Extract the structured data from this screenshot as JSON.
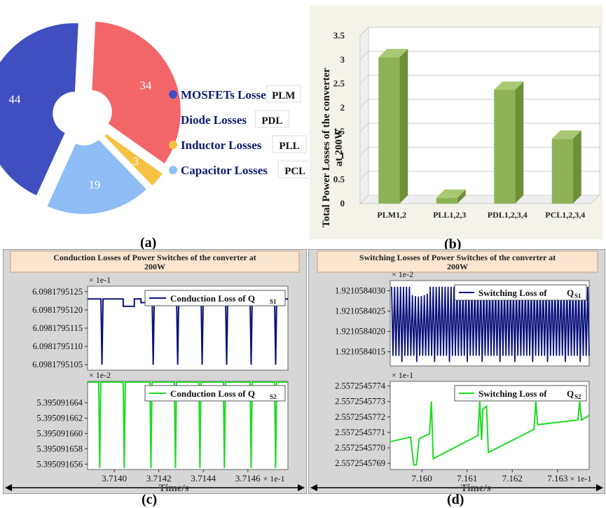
{
  "labels": {
    "a": "(a)",
    "b": "(b)",
    "c": "(c)",
    "d": "(d)"
  },
  "chart_data": [
    {
      "id": "a",
      "type": "pie",
      "donut": true,
      "slices": [
        {
          "label": "MOSFETs Losses",
          "tag": "PLM",
          "value": 44,
          "color": "#3f4fbf"
        },
        {
          "label": "Diode Losses",
          "tag": "PDL",
          "value": 34,
          "color": "#f2666a"
        },
        {
          "label": "Inductor Losses",
          "tag": "PLL",
          "value": 3,
          "color": "#f7c244"
        },
        {
          "label": "Capacitor Losses",
          "tag": "PCL",
          "value": 19,
          "color": "#8fbdf5"
        }
      ]
    },
    {
      "id": "b",
      "type": "bar",
      "style": "3d",
      "ylabel_lines": [
        "Total Power Losses of the converter",
        "at 200W"
      ],
      "categories": [
        "PLM1,2",
        "PLL1,2,3",
        "PDL1,2,3,4",
        "PCL1,2,3,4"
      ],
      "values": [
        3.05,
        0.12,
        2.37,
        1.35
      ],
      "ylim": [
        0,
        3.5
      ],
      "yticks": [
        "0",
        "0.5",
        "1",
        "1.5",
        "2",
        "2.5",
        "3",
        "3.5"
      ],
      "bar_color": "#8db356"
    },
    {
      "id": "c",
      "type": "line",
      "title_lines": [
        "Conduction Losses of Power Switches of the converter at",
        "200W"
      ],
      "xlabel": "Time/s",
      "xticks": [
        "3.7140",
        "3.7142",
        "3.7144",
        "3.7146"
      ],
      "xmultiplier": "× 1e-1",
      "xlim": [
        3.71388,
        3.71478
      ],
      "plots": [
        {
          "multiplier": "× 1e-1",
          "legend": "Conduction Loss of Q",
          "legend_sub": "S1",
          "color": "#0a127a",
          "yticks": [
            "6.0981795125",
            "6.0981795120",
            "6.0981795115",
            "6.0981795110",
            "6.0981795105"
          ],
          "ylim": [
            6.09817951035,
            6.09817951265
          ],
          "baseline": 6.0981795123,
          "dip_to": 6.0981795105,
          "dips_x": [
            3.71394,
            3.71417,
            3.71428,
            3.71439,
            3.7145,
            3.71461,
            3.71472
          ],
          "notches": [
            [
              3.71404,
              3.71409,
              6.0981795121
            ],
            [
              3.71412,
              3.71415,
              6.0981795122
            ]
          ]
        },
        {
          "multiplier": "× 1e-2",
          "legend": "Conduction Loss of Q",
          "legend_sub": "S2",
          "color": "#1edb22",
          "yticks": [
            "5.395091664",
            "5.395091662",
            "5.395091660",
            "5.395091658",
            "5.395091656"
          ],
          "ylim": [
            5.3950916553,
            5.3950916668
          ],
          "baseline": 5.3950916667,
          "dip_to": 5.3950916555,
          "dips_x": [
            3.71393,
            3.71404,
            3.71416,
            3.71427,
            3.71438,
            3.71449,
            3.71461,
            3.71472
          ]
        }
      ]
    },
    {
      "id": "d",
      "type": "line",
      "title_lines": [
        "Switching Losses of Power Switches of the converter at",
        "200W"
      ],
      "xlabel": "Time/s",
      "xticks": [
        "7.160",
        "7.161",
        "7.162",
        "7.163"
      ],
      "xmultiplier": "× 1e-1",
      "xlim": [
        7.1593,
        7.1637
      ],
      "plots": [
        {
          "multiplier": "× 1e-2",
          "legend": "Switching Loss of",
          "legend_main": "Q",
          "legend_sub": "S1",
          "color": "#0a127a",
          "yticks": [
            "1.9210584030",
            "1.9210584025",
            "1.9210584020",
            "1.9210584015"
          ],
          "ylim": [
            1.92105840115,
            1.92105840325
          ],
          "band_top": 1.9210584031,
          "band_bottom": 1.9210584014,
          "band_bottom_deep": 1.92105840125
        },
        {
          "multiplier": "× 1e-1",
          "legend": "Switching Loss of",
          "legend_main": "Q",
          "legend_sub": "S2",
          "color": "#1edb22",
          "yticks": [
            "2.5572545774",
            "2.5572545773",
            "2.5572545772",
            "2.5572545771",
            "2.5572545770",
            "2.5572545769"
          ],
          "ylim": [
            2.55725457686,
            2.55725457743
          ],
          "points": [
            [
              7.1593,
              2.55725457704
            ],
            [
              7.15975,
              2.55725457707
            ],
            [
              7.15982,
              2.55725457689
            ],
            [
              7.15988,
              2.55725457689
            ],
            [
              7.15994,
              2.55725457706
            ],
            [
              7.16017,
              2.55725457709
            ],
            [
              7.16021,
              2.5572545773
            ],
            [
              7.16025,
              2.55725457693
            ],
            [
              7.16124,
              2.55725457708
            ],
            [
              7.16128,
              2.5572545773
            ],
            [
              7.16132,
              2.55725457705
            ],
            [
              7.16135,
              2.55725457725
            ],
            [
              7.16143,
              2.55725457727
            ],
            [
              7.16147,
              2.55725457697
            ],
            [
              7.16248,
              2.55725457712
            ],
            [
              7.16252,
              2.5572545773
            ],
            [
              7.16256,
              2.55725457715
            ],
            [
              7.16345,
              2.55725457718
            ],
            [
              7.16349,
              2.5572545773
            ],
            [
              7.16353,
              2.55725457718
            ],
            [
              7.1637,
              2.55725457721
            ]
          ]
        }
      ]
    }
  ]
}
